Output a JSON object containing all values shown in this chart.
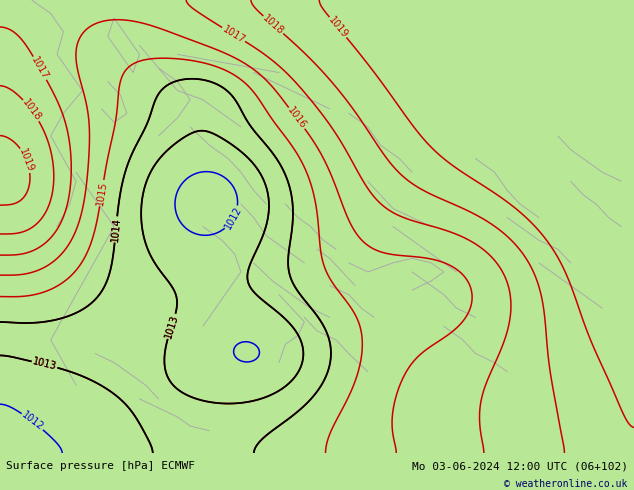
{
  "title_left": "Surface pressure [hPa] ECMWF",
  "title_right": "Mo 03-06-2024 12:00 UTC (06+102)",
  "copyright": "© weatheronline.co.uk",
  "background_color": "#b8e896",
  "figsize": [
    6.34,
    4.9
  ],
  "dpi": 100,
  "contour_color_blue": "#0000dd",
  "contour_color_black": "#000000",
  "contour_color_red": "#cc0000",
  "label_fontsize": 7,
  "footer_fontsize": 8
}
